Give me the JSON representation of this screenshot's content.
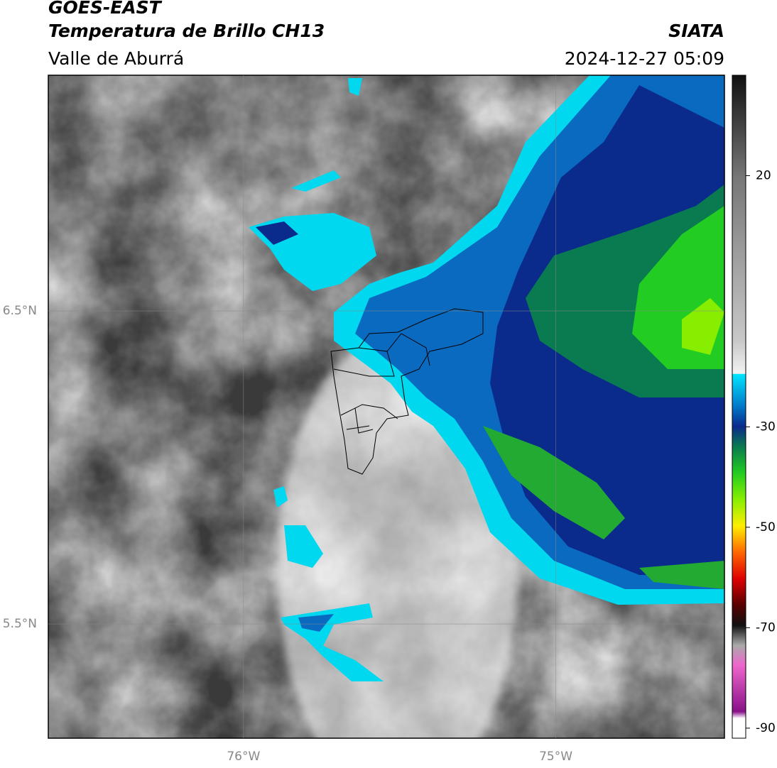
{
  "header": {
    "title": "GOES-EAST",
    "subtitle": "Temperatura de Brillo CH13",
    "region": "Valle de Aburrá",
    "source": "SIATA",
    "datetime": "2024-12-27 05:09"
  },
  "map": {
    "lonlim": [
      -76.625,
      -74.46
    ],
    "latlim": [
      5.135,
      7.253
    ],
    "lonticks": [
      {
        "value": -76,
        "label": "76°W"
      },
      {
        "value": -75,
        "label": "75°W"
      }
    ],
    "latticks": [
      {
        "value": 6.5,
        "label": "6.5°N"
      },
      {
        "value": 5.5,
        "label": "5.5°N"
      }
    ]
  },
  "colorbar": {
    "clim": [
      -92,
      40
    ],
    "ticks": [
      20,
      -30,
      -50,
      -70,
      -90
    ]
  }
}
